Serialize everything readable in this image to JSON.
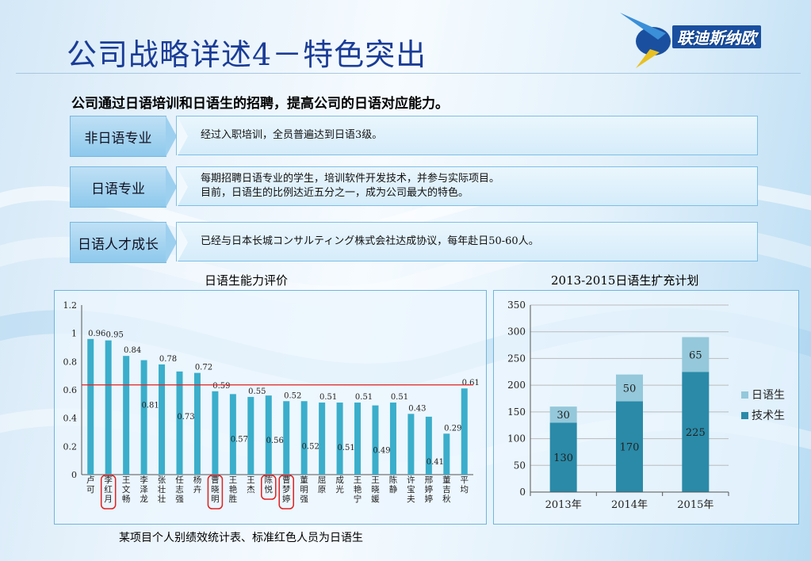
{
  "title": "公司战略详述4－特色突出",
  "logo_text": "联迪斯纳欧",
  "subtitle": "公司通过日语培训和日语生的招聘，提高公司的日语对应能力。",
  "rows": [
    {
      "label": "非日语专业",
      "lines": [
        "经过入职培训，全员普遍达到日语3级。"
      ]
    },
    {
      "label": "日语专业",
      "lines": [
        "每期招聘日语专业的学生，培训软件开发技术，并参与实际项目。",
        "目前，日语生的比例达近五分之一，成为公司最大的特色。"
      ]
    },
    {
      "label": "日语人才成长",
      "lines": [
        "已经与日本长城コンサルティング株式会社达成协议，每年赴日50-60人。"
      ]
    }
  ],
  "caption": "某项目个人别绩效统计表、标准红色人员为日语生",
  "chart_data": [
    {
      "type": "bar",
      "title": "日语生能力评价",
      "categories": [
        "卢可",
        "李红月",
        "王文畅",
        "李泽龙",
        "张壮壮",
        "任志强",
        "杨卉",
        "曹晓明",
        "王艳胜",
        "王杰",
        "陈悦",
        "曹梦婷",
        "董明强",
        "屈原",
        "成光",
        "王艳宁",
        "王晓媛",
        "陈静",
        "许宝夫",
        "邢婷婷",
        "董吉秋",
        "平均"
      ],
      "values": [
        0.96,
        0.95,
        0.84,
        0.81,
        0.78,
        0.73,
        0.72,
        0.59,
        0.57,
        0.55,
        0.56,
        0.52,
        0.52,
        0.51,
        0.51,
        0.51,
        0.49,
        0.51,
        0.43,
        0.41,
        0.29,
        0.61
      ],
      "value_labels": [
        "0.96",
        "0.95",
        "0.84",
        "0.81",
        "0.78",
        "0.73",
        "0.72",
        "0.59",
        "0.57",
        "0.55",
        "0.56",
        "0.52",
        "0.52",
        "0.51",
        "0.51",
        "0.51",
        "0.49",
        "0.51",
        "0.43",
        "0.41",
        "0.29",
        "0.61"
      ],
      "highlighted": [
        "李红月",
        "曹晓明",
        "陈悦",
        "曹梦婷"
      ],
      "reference_line": 0.635,
      "ylim": [
        0,
        1.2
      ],
      "yticks": [
        "0",
        "0.2",
        "0.4",
        "0.6",
        "0.8",
        "1",
        "1.2"
      ],
      "colors": {
        "bar": "#3aaecb",
        "reference": "#e02020",
        "highlight": "#e02020"
      }
    },
    {
      "type": "stacked-bar",
      "title": "2013-2015日语生扩充计划",
      "categories": [
        "2013年",
        "2014年",
        "2015年"
      ],
      "series": [
        {
          "name": "技术生",
          "values": [
            130,
            170,
            225
          ],
          "color": "#2a8aa8"
        },
        {
          "name": "日语生",
          "values": [
            30,
            50,
            65
          ],
          "color": "#94c8da"
        }
      ],
      "ylim": [
        0,
        350
      ],
      "yticks": [
        "0",
        "50",
        "100",
        "150",
        "200",
        "250",
        "300",
        "350"
      ],
      "legend": [
        "日语生",
        "技术生"
      ]
    }
  ]
}
